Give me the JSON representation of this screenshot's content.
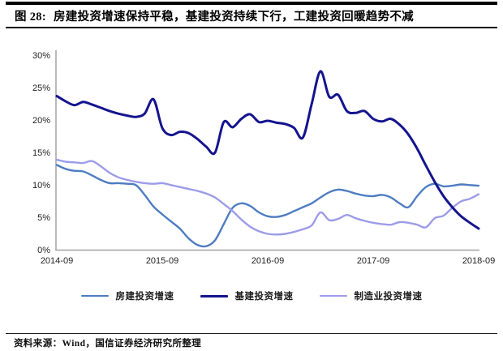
{
  "figure": {
    "label": "图 28:",
    "title": "房建投资增速保持平稳，基建投资持续下行，工建投资回暖趋势不减"
  },
  "footer": {
    "source": "资料来源：Wind，国信证券经济研究所整理"
  },
  "chart_data": {
    "type": "line",
    "title": "房建投资增速保持平稳，基建投资持续下行，工建投资回暖趋势不减",
    "x_axis": "month, cumulative YoY growth, 2014-09 to 2018-09 (monthly points)",
    "x_tick_labels": [
      "2014-09",
      "2015-09",
      "2016-09",
      "2017-09",
      "2018-09"
    ],
    "y_tick_labels": [
      "0%",
      "5%",
      "10%",
      "15%",
      "20%",
      "25%",
      "30%"
    ],
    "ylim": [
      0,
      30
    ],
    "grid": false,
    "legend_position": "bottom",
    "axis_color": "#A8A8A8",
    "series": [
      {
        "name": "房建投资增速",
        "color": "#4E7CC2",
        "width": 2.4,
        "z": 1,
        "values": [
          13.1,
          12.5,
          12.2,
          12.1,
          11.5,
          10.8,
          10.3,
          10.3,
          10.2,
          10.0,
          8.5,
          6.7,
          5.5,
          4.4,
          3.3,
          1.8,
          0.8,
          0.6,
          1.5,
          4.0,
          6.5,
          7.2,
          6.8,
          5.8,
          5.2,
          5.1,
          5.4,
          6.0,
          6.6,
          7.2,
          8.1,
          8.9,
          9.3,
          9.1,
          8.7,
          8.4,
          8.3,
          8.5,
          8.1,
          7.2,
          6.6,
          8.3,
          9.7,
          10.2,
          9.8,
          9.9,
          10.1,
          10.0,
          9.9
        ]
      },
      {
        "name": "基建投资增速",
        "color": "#14148F",
        "width": 3.0,
        "z": 3,
        "values": [
          23.7,
          22.9,
          22.3,
          22.8,
          22.4,
          21.9,
          21.4,
          21.0,
          20.7,
          20.5,
          21.0,
          23.2,
          18.8,
          17.7,
          18.2,
          18.0,
          17.1,
          15.9,
          15.0,
          19.7,
          18.9,
          20.2,
          20.9,
          19.7,
          19.9,
          19.6,
          19.4,
          18.8,
          17.3,
          22.5,
          27.5,
          23.6,
          23.9,
          21.4,
          21.1,
          21.4,
          20.2,
          19.8,
          20.2,
          19.3,
          17.8,
          15.6,
          13.0,
          10.5,
          8.3,
          6.6,
          5.2,
          4.2,
          3.3
        ]
      },
      {
        "name": "制造业投资增速",
        "color": "#9C9CE8",
        "width": 2.4,
        "z": 2,
        "values": [
          13.9,
          13.6,
          13.5,
          13.4,
          13.7,
          12.9,
          11.9,
          11.2,
          10.8,
          10.5,
          10.3,
          10.2,
          10.3,
          10.0,
          9.7,
          9.4,
          9.1,
          8.7,
          8.1,
          7.1,
          6.0,
          4.7,
          3.6,
          2.9,
          2.5,
          2.4,
          2.5,
          2.8,
          3.2,
          3.8,
          5.8,
          4.6,
          4.8,
          5.4,
          4.9,
          4.5,
          4.2,
          4.0,
          3.9,
          4.3,
          4.2,
          3.9,
          3.5,
          4.9,
          5.3,
          6.5,
          7.5,
          7.9,
          8.6
        ]
      }
    ]
  }
}
